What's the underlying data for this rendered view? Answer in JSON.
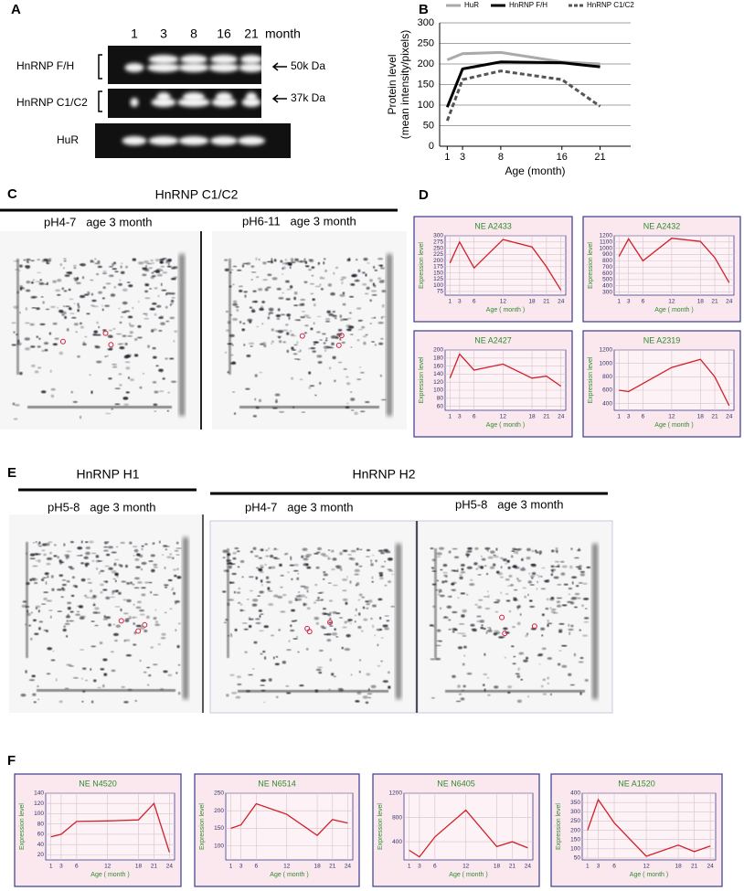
{
  "figure": {
    "panel_labels": [
      "A",
      "B",
      "C",
      "D",
      "E",
      "F"
    ],
    "blot": {
      "lanes": [
        "1",
        "3",
        "8",
        "16",
        "21"
      ],
      "unit": "month",
      "rows": [
        {
          "name": "HnRNP F/H",
          "size": "50k Da"
        },
        {
          "name": "HnRNP C1/C2",
          "size": "37k Da"
        },
        {
          "name": "HuR"
        }
      ]
    },
    "gels_c": {
      "title": "HnRNP C1/C2",
      "gels": [
        "pH4-7   age 3 month",
        "pH6-11   age 3 month"
      ]
    },
    "gels_e": {
      "groups": [
        "HnRNP H1",
        "HnRNP H2"
      ],
      "gels": [
        "pH5-8   age 3 month",
        "pH4-7   age 3 month",
        "pH5-8   age 3 month"
      ]
    }
  },
  "chart_data": [
    {
      "type": "line",
      "ylabel": [
        "Protein level",
        "(mean intensity/pixels)"
      ],
      "xlabel": "Age (month)",
      "x": [
        1,
        3,
        8,
        16,
        21
      ],
      "xlim": [
        0,
        25
      ],
      "xticks": [
        1,
        3,
        8,
        16,
        21
      ],
      "ylim": [
        0,
        300
      ],
      "yticks": [
        0,
        50,
        100,
        150,
        200,
        250,
        300
      ],
      "grid": true,
      "legend": "top",
      "series": [
        {
          "name": "HuR",
          "color": "#aaaaaa",
          "dash": "solid",
          "values": [
            210,
            225,
            228,
            205,
            200
          ]
        },
        {
          "name": "HnRNP F/H",
          "color": "#000000",
          "dash": "solid",
          "values": [
            95,
            188,
            205,
            203,
            193
          ]
        },
        {
          "name": "HnRNP C1/C2",
          "color": "#555555",
          "dash": "dashed",
          "values": [
            62,
            162,
            183,
            162,
            97
          ]
        }
      ]
    },
    {
      "type": "line",
      "title": "NE A2433",
      "ylabel": "Expression level",
      "xlabel": "Age ( month )",
      "x": [
        1,
        3,
        6,
        12,
        18,
        21,
        24
      ],
      "xlim": [
        0,
        25
      ],
      "xticks": [
        1,
        3,
        6,
        12,
        18,
        21,
        24
      ],
      "ylim": [
        60,
        300
      ],
      "yticks": [
        75,
        100,
        125,
        150,
        175,
        200,
        225,
        250,
        275,
        300
      ],
      "grid": true,
      "color": "#d0202a",
      "values": [
        190,
        275,
        170,
        285,
        255,
        175,
        80
      ]
    },
    {
      "type": "line",
      "title": "NE A2432",
      "ylabel": "Expression level",
      "xlabel": "Age ( month )",
      "x": [
        1,
        3,
        6,
        12,
        18,
        21,
        24
      ],
      "xlim": [
        0,
        25
      ],
      "xticks": [
        1,
        3,
        6,
        12,
        18,
        21,
        24
      ],
      "ylim": [
        250,
        1200
      ],
      "yticks": [
        300,
        400,
        500,
        600,
        700,
        800,
        900,
        1000,
        1100,
        1200
      ],
      "grid": true,
      "color": "#d0202a",
      "values": [
        870,
        1150,
        800,
        1160,
        1110,
        850,
        450
      ]
    },
    {
      "type": "line",
      "title": "NE A2427",
      "ylabel": "Expression level",
      "xlabel": "Age ( month )",
      "x": [
        1,
        3,
        6,
        12,
        18,
        21,
        24
      ],
      "xlim": [
        0,
        25
      ],
      "xticks": [
        1,
        3,
        6,
        12,
        18,
        21,
        24
      ],
      "ylim": [
        50,
        200
      ],
      "yticks": [
        60,
        80,
        100,
        120,
        140,
        160,
        180,
        200
      ],
      "grid": true,
      "color": "#d0202a",
      "values": [
        130,
        190,
        150,
        165,
        130,
        135,
        110
      ]
    },
    {
      "type": "line",
      "title": "NE A2319",
      "ylabel": "Expression level",
      "xlabel": "Age ( month )",
      "x": [
        1,
        3,
        6,
        12,
        18,
        21,
        24
      ],
      "xlim": [
        0,
        25
      ],
      "xticks": [
        1,
        3,
        6,
        12,
        18,
        21,
        24
      ],
      "ylim": [
        300,
        1200
      ],
      "yticks": [
        400,
        600,
        800,
        1000,
        1200
      ],
      "grid": true,
      "color": "#d0202a",
      "values": [
        600,
        580,
        700,
        940,
        1060,
        800,
        370
      ]
    },
    {
      "type": "line",
      "title": "NE N4520",
      "ylabel": "Expression level",
      "xlabel": "Age ( month )",
      "x": [
        1,
        3,
        6,
        12,
        18,
        21,
        24
      ],
      "xlim": [
        0,
        25
      ],
      "xticks": [
        1,
        3,
        6,
        12,
        18,
        21,
        24
      ],
      "ylim": [
        10,
        140
      ],
      "yticks": [
        20,
        40,
        60,
        80,
        100,
        120,
        140
      ],
      "grid": true,
      "color": "#d0202a",
      "values": [
        55,
        60,
        85,
        86,
        88,
        120,
        25
      ]
    },
    {
      "type": "line",
      "title": "NE N6514",
      "ylabel": "Expression level",
      "xlabel": "Age ( month )",
      "x": [
        1,
        3,
        6,
        12,
        18,
        21,
        24
      ],
      "xlim": [
        0,
        25
      ],
      "xticks": [
        1,
        3,
        6,
        12,
        18,
        21,
        24
      ],
      "ylim": [
        60,
        250
      ],
      "yticks": [
        100,
        150,
        200,
        250
      ],
      "grid": true,
      "color": "#d0202a",
      "values": [
        150,
        160,
        220,
        190,
        130,
        175,
        165
      ]
    },
    {
      "type": "line",
      "title": "NE N6405",
      "ylabel": "Expression level",
      "xlabel": "Age ( month )",
      "x": [
        1,
        3,
        6,
        12,
        18,
        21,
        24
      ],
      "xlim": [
        0,
        25
      ],
      "xticks": [
        1,
        3,
        6,
        12,
        18,
        21,
        24
      ],
      "ylim": [
        100,
        1200
      ],
      "yticks": [
        400,
        800,
        1200
      ],
      "grid": true,
      "color": "#d0202a",
      "values": [
        260,
        150,
        480,
        920,
        320,
        400,
        300
      ]
    },
    {
      "type": "line",
      "title": "NE A1520",
      "ylabel": "Expression level",
      "xlabel": "Age ( month )",
      "x": [
        1,
        3,
        6,
        12,
        18,
        21,
        24
      ],
      "xlim": [
        0,
        25
      ],
      "xticks": [
        1,
        3,
        6,
        12,
        18,
        21,
        24
      ],
      "ylim": [
        40,
        400
      ],
      "yticks": [
        50,
        100,
        150,
        200,
        250,
        300,
        350,
        400
      ],
      "grid": true,
      "color": "#d0202a",
      "values": [
        200,
        365,
        240,
        60,
        120,
        85,
        115
      ]
    }
  ]
}
